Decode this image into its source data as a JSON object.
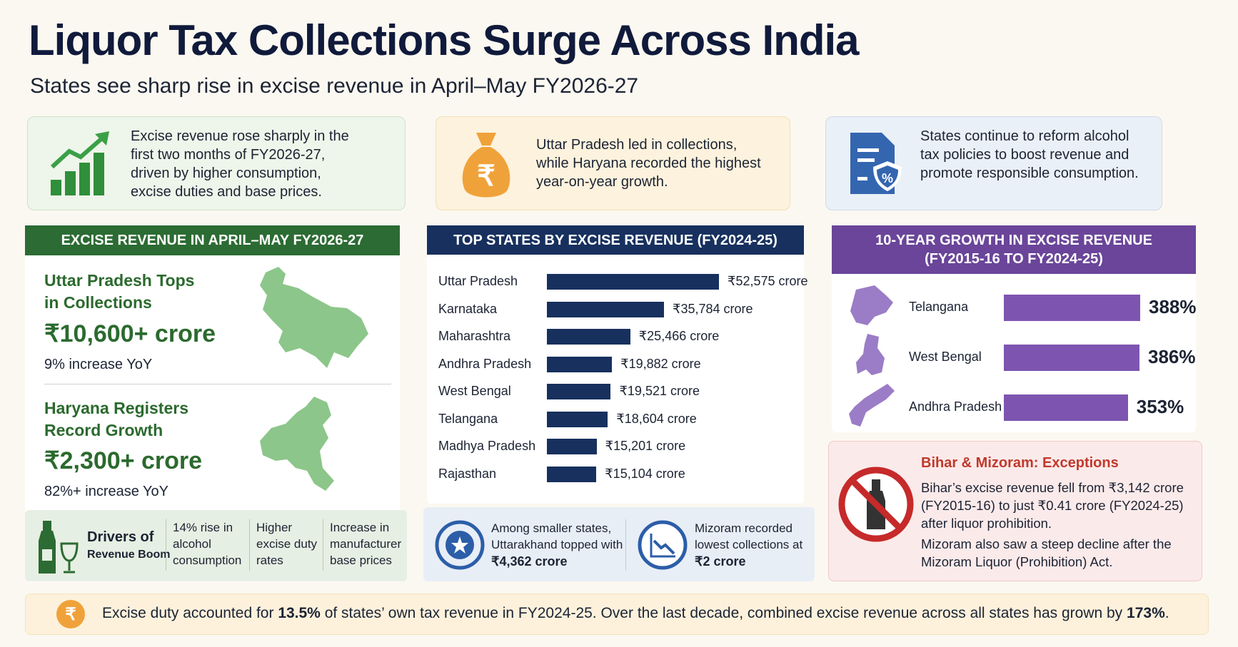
{
  "header": {
    "title": "Liquor Tax Collections Surge Across India",
    "subtitle": "States see sharp rise in excise revenue in April–May FY2026-27"
  },
  "highlights": [
    "Excise revenue rose sharply in the first two months of FY2026-27, driven by higher consumption, excise duties and base prices.",
    "Uttar Pradesh led in collections, while Haryana recorded the highest year-on-year growth.",
    "States continue to reform alcohol tax policies to boost revenue and promote responsible consumption."
  ],
  "excise_panel": {
    "title": "EXCISE REVENUE IN APRIL–MAY FY2026-27",
    "items": [
      {
        "heading": "Uttar Pradesh Tops in Collections",
        "amount": "₹10,600+ crore",
        "change": "9% increase YoY"
      },
      {
        "heading": "Haryana Registers Record Growth",
        "amount": "₹2,300+ crore",
        "change": "82%+ increase YoY"
      }
    ],
    "drivers": {
      "title": "Drivers of",
      "subtitle": "Revenue Boom",
      "items": [
        "14% rise in alcohol consumption",
        "Higher excise duty rates",
        "Increase in manufacturer base prices"
      ]
    }
  },
  "top_states": {
    "type": "bar",
    "title": "TOP STATES BY EXCISE REVENUE (FY2024-25)",
    "color": "#17305e",
    "categories": [
      "Uttar Pradesh",
      "Karnataka",
      "Maharashtra",
      "Andhra Pradesh",
      "West Bengal",
      "Telangana",
      "Madhya Pradesh",
      "Rajasthan"
    ],
    "values": [
      52575,
      35784,
      25466,
      19882,
      19521,
      18604,
      15201,
      15104
    ],
    "value_labels": [
      "₹52,575 crore",
      "₹35,784 crore",
      "₹25,466 crore",
      "₹19,882 crore",
      "₹19,521 crore",
      "₹18,604 crore",
      "₹15,201 crore",
      "₹15,104 crore"
    ],
    "notes": [
      {
        "text": "Among smaller states, Uttarakhand topped with",
        "amount": "₹4,362 crore"
      },
      {
        "text": "Mizoram recorded lowest collections at",
        "amount": "₹2 crore"
      }
    ]
  },
  "growth": {
    "type": "bar",
    "title": "10-YEAR GROWTH IN EXCISE REVENUE (FY2015-16 TO FY2024-25)",
    "color": "#7d55b0",
    "categories": [
      "Telangana",
      "West Bengal",
      "Andhra Pradesh"
    ],
    "values": [
      388,
      386,
      353
    ],
    "value_labels": [
      "388%",
      "386%",
      "353%"
    ]
  },
  "exceptions": {
    "title": "Bihar & Mizoram: Exceptions",
    "paragraphs": [
      "Bihar’s excise revenue fell from ₹3,142 crore (FY2015-16) to just ₹0.41 crore (FY2024-25) after liquor prohibition.",
      "Mizoram also saw a steep decline after the Mizoram Liquor (Prohibition) Act."
    ]
  },
  "footer": {
    "parts": [
      "Excise duty accounted for ",
      "13.5%",
      " of states’ own tax revenue in FY2024-25. Over the last decade, combined excise revenue across all states has grown by ",
      "173%",
      "."
    ]
  }
}
